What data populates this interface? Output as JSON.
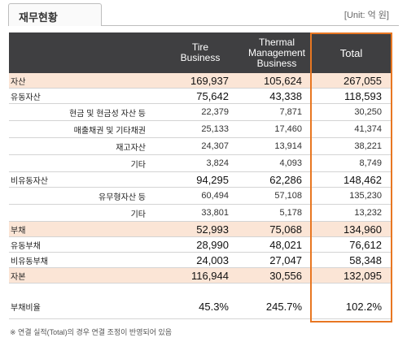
{
  "title": "재무현황",
  "unit": "[Unit: 억 원]",
  "columns": [
    "",
    "Tire\nBusiness",
    "Thermal\nManagement\nBusiness",
    "Total"
  ],
  "rows": [
    {
      "label": "자산",
      "tire": "169,937",
      "thermal": "105,624",
      "total": "267,055",
      "kind": "peach"
    },
    {
      "label": "유동자산",
      "tire": "75,642",
      "thermal": "43,338",
      "total": "118,593",
      "kind": "bold"
    },
    {
      "label": "현금 및 현금성 자산 등",
      "tire": "22,379",
      "thermal": "7,871",
      "total": "30,250",
      "kind": "sub"
    },
    {
      "label": "매출채권 및 기타채권",
      "tire": "25,133",
      "thermal": "17,460",
      "total": "41,374",
      "kind": "sub"
    },
    {
      "label": "재고자산",
      "tire": "24,307",
      "thermal": "13,914",
      "total": "38,221",
      "kind": "sub"
    },
    {
      "label": "기타",
      "tire": "3,824",
      "thermal": "4,093",
      "total": "8,749",
      "kind": "sub"
    },
    {
      "label": "비유동자산",
      "tire": "94,295",
      "thermal": "62,286",
      "total": "148,462",
      "kind": "bold"
    },
    {
      "label": "유무형자산 등",
      "tire": "60,494",
      "thermal": "57,108",
      "total": "135,230",
      "kind": "sub"
    },
    {
      "label": "기타",
      "tire": "33,801",
      "thermal": "5,178",
      "total": "13,232",
      "kind": "sub"
    },
    {
      "label": "부채",
      "tire": "52,993",
      "thermal": "75,068",
      "total": "134,960",
      "kind": "peach"
    },
    {
      "label": "유동부채",
      "tire": "28,990",
      "thermal": "48,021",
      "total": "76,612",
      "kind": "bold"
    },
    {
      "label": "비유동부채",
      "tire": "24,003",
      "thermal": "27,047",
      "total": "58,348",
      "kind": "bold"
    },
    {
      "label": "자본",
      "tire": "116,944",
      "thermal": "30,556",
      "total": "132,095",
      "kind": "peach"
    },
    {
      "label": "",
      "tire": "",
      "thermal": "",
      "total": "",
      "kind": "pad"
    },
    {
      "label": "부채비율",
      "tire": "45.3%",
      "thermal": "245.7%",
      "total": "102.2%",
      "kind": "ratio"
    }
  ],
  "footnote": "※ 연결 실적(Total)의 경우 연결 조정이 반영되어 있음",
  "colors": {
    "header": "#3f3f41",
    "peach": "#fbe5d6",
    "highlight": "#e87722"
  }
}
